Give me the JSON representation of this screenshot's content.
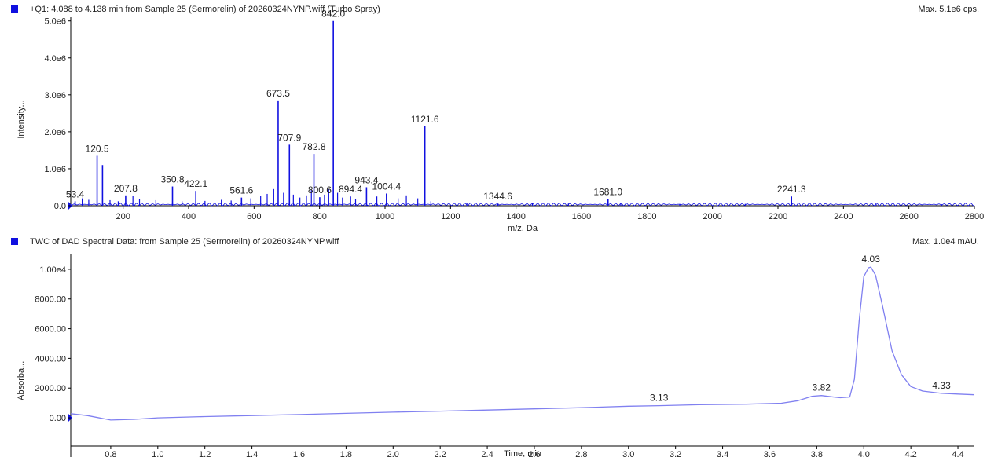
{
  "colors": {
    "accent": "#1010e0",
    "trace": "#8080f0",
    "axis": "#000000"
  },
  "spectrum": {
    "title": "+Q1: 4.088 to 4.138 min from Sample 25 (Sermorelin) of 20260324NYNP.wiff (Turbo Spray)",
    "max_label": "Max. 5.1e6 cps."
  },
  "chromatogram": {
    "title": "TWC of DAD Spectral Data: from Sample 25 (Sermorelin) of 20260324NYNP.wiff",
    "max_label": "Max. 1.0e4 mAU."
  },
  "chart_data": [
    {
      "type": "bar",
      "xlabel": "m/z, Da",
      "ylabel": "Intensity...",
      "xlim": [
        40,
        2800
      ],
      "ylim": [
        0,
        5100000.0
      ],
      "xticks": [
        200,
        400,
        600,
        800,
        1000,
        1200,
        1400,
        1600,
        1800,
        2000,
        2200,
        2400,
        2600,
        2800
      ],
      "yticks": [
        {
          "value": 0,
          "label": "0.0"
        },
        {
          "value": 1000000,
          "label": "1.0e6"
        },
        {
          "value": 2000000,
          "label": "2.0e6"
        },
        {
          "value": 3000000,
          "label": "3.0e6"
        },
        {
          "value": 4000000,
          "label": "4.0e6"
        },
        {
          "value": 5000000,
          "label": "5.0e6"
        }
      ],
      "peaks": [
        {
          "mz": 53.4,
          "intensity": 120000,
          "label": "53.4"
        },
        {
          "mz": 120.5,
          "intensity": 1350000,
          "label": "120.5"
        },
        {
          "mz": 137.0,
          "intensity": 1100000
        },
        {
          "mz": 207.8,
          "intensity": 280000,
          "label": "207.8"
        },
        {
          "mz": 350.8,
          "intensity": 520000,
          "label": "350.8"
        },
        {
          "mz": 422.1,
          "intensity": 400000,
          "label": "422.1"
        },
        {
          "mz": 561.6,
          "intensity": 220000,
          "label": "561.6"
        },
        {
          "mz": 673.5,
          "intensity": 2850000,
          "label": "673.5"
        },
        {
          "mz": 707.9,
          "intensity": 1650000,
          "label": "707.9"
        },
        {
          "mz": 782.8,
          "intensity": 1400000,
          "label": "782.8"
        },
        {
          "mz": 800.6,
          "intensity": 230000,
          "label": "800.6"
        },
        {
          "mz": 842.0,
          "intensity": 5000000,
          "label": "842.0"
        },
        {
          "mz": 894.4,
          "intensity": 250000,
          "label": "894.4"
        },
        {
          "mz": 943.4,
          "intensity": 500000,
          "label": "943.4"
        },
        {
          "mz": 1004.4,
          "intensity": 330000,
          "label": "1004.4"
        },
        {
          "mz": 1121.6,
          "intensity": 2150000,
          "label": "1121.6"
        },
        {
          "mz": 1344.6,
          "intensity": 60000,
          "label": "1344.6"
        },
        {
          "mz": 1681.0,
          "intensity": 180000,
          "label": "1681.0"
        },
        {
          "mz": 2241.3,
          "intensity": 250000,
          "label": "2241.3"
        }
      ],
      "minor_peaks": [
        {
          "mz": 75,
          "intensity": 200000
        },
        {
          "mz": 95,
          "intensity": 160000
        },
        {
          "mz": 160,
          "intensity": 150000
        },
        {
          "mz": 185,
          "intensity": 120000
        },
        {
          "mz": 230,
          "intensity": 260000
        },
        {
          "mz": 250,
          "intensity": 180000
        },
        {
          "mz": 300,
          "intensity": 150000
        },
        {
          "mz": 380,
          "intensity": 120000
        },
        {
          "mz": 450,
          "intensity": 130000
        },
        {
          "mz": 500,
          "intensity": 160000
        },
        {
          "mz": 530,
          "intensity": 140000
        },
        {
          "mz": 590,
          "intensity": 200000
        },
        {
          "mz": 620,
          "intensity": 260000
        },
        {
          "mz": 640,
          "intensity": 320000
        },
        {
          "mz": 660,
          "intensity": 450000
        },
        {
          "mz": 690,
          "intensity": 350000
        },
        {
          "mz": 720,
          "intensity": 300000
        },
        {
          "mz": 740,
          "intensity": 220000
        },
        {
          "mz": 760,
          "intensity": 280000
        },
        {
          "mz": 775,
          "intensity": 420000
        },
        {
          "mz": 815,
          "intensity": 300000
        },
        {
          "mz": 828,
          "intensity": 450000
        },
        {
          "mz": 855,
          "intensity": 350000
        },
        {
          "mz": 870,
          "intensity": 220000
        },
        {
          "mz": 910,
          "intensity": 180000
        },
        {
          "mz": 975,
          "intensity": 250000
        },
        {
          "mz": 1040,
          "intensity": 200000
        },
        {
          "mz": 1065,
          "intensity": 280000
        },
        {
          "mz": 1100,
          "intensity": 200000
        },
        {
          "mz": 1140,
          "intensity": 120000
        },
        {
          "mz": 1250,
          "intensity": 80000
        },
        {
          "mz": 1450,
          "intensity": 60000
        },
        {
          "mz": 1560,
          "intensity": 60000
        },
        {
          "mz": 1720,
          "intensity": 60000
        },
        {
          "mz": 1900,
          "intensity": 50000
        },
        {
          "mz": 2100,
          "intensity": 50000
        },
        {
          "mz": 2500,
          "intensity": 40000
        },
        {
          "mz": 2700,
          "intensity": 40000
        }
      ]
    },
    {
      "type": "line",
      "xlabel": "Time, min",
      "ylabel": "Absorba...",
      "xlim": [
        0.63,
        4.47
      ],
      "ylim": [
        -1900,
        11000
      ],
      "xticks": [
        {
          "value": 0.8,
          "label": "0.8"
        },
        {
          "value": 1.0,
          "label": "1.0"
        },
        {
          "value": 1.2,
          "label": "1.2"
        },
        {
          "value": 1.4,
          "label": "1.4"
        },
        {
          "value": 1.6,
          "label": "1.6"
        },
        {
          "value": 1.8,
          "label": "1.8"
        },
        {
          "value": 2.0,
          "label": "2.0"
        },
        {
          "value": 2.2,
          "label": "2.2"
        },
        {
          "value": 2.4,
          "label": "2.4"
        },
        {
          "value": 2.6,
          "label": "2.6"
        },
        {
          "value": 2.8,
          "label": "2.8"
        },
        {
          "value": 3.0,
          "label": "3.0"
        },
        {
          "value": 3.2,
          "label": "3.2"
        },
        {
          "value": 3.4,
          "label": "3.4"
        },
        {
          "value": 3.6,
          "label": "3.6"
        },
        {
          "value": 3.8,
          "label": "3.8"
        },
        {
          "value": 4.0,
          "label": "4.0"
        },
        {
          "value": 4.2,
          "label": "4.2"
        },
        {
          "value": 4.4,
          "label": "4.4"
        }
      ],
      "yticks": [
        {
          "value": 0,
          "label": "0.00"
        },
        {
          "value": 2000,
          "label": "2000.00"
        },
        {
          "value": 4000,
          "label": "4000.00"
        },
        {
          "value": 6000,
          "label": "6000.00"
        },
        {
          "value": 8000,
          "label": "8000.00"
        },
        {
          "value": 10000,
          "label": "1.00e4"
        }
      ],
      "x": [
        0.63,
        0.7,
        0.8,
        0.9,
        1.0,
        1.2,
        1.4,
        1.6,
        1.8,
        2.0,
        2.2,
        2.4,
        2.6,
        2.8,
        3.0,
        3.13,
        3.3,
        3.5,
        3.65,
        3.72,
        3.78,
        3.82,
        3.86,
        3.9,
        3.94,
        3.96,
        3.98,
        4.0,
        4.02,
        4.03,
        4.05,
        4.08,
        4.12,
        4.16,
        4.2,
        4.25,
        4.33,
        4.4,
        4.47
      ],
      "y": [
        280,
        150,
        -150,
        -100,
        0,
        80,
        150,
        220,
        300,
        380,
        450,
        520,
        600,
        680,
        780,
        820,
        880,
        920,
        980,
        1150,
        1450,
        1500,
        1420,
        1350,
        1400,
        2600,
        6500,
        9500,
        10100,
        10150,
        9600,
        7500,
        4500,
        2900,
        2100,
        1800,
        1650,
        1600,
        1550
      ],
      "annotations": [
        {
          "x": 3.13,
          "y": 820,
          "label": "3.13"
        },
        {
          "x": 3.82,
          "y": 1500,
          "label": "3.82"
        },
        {
          "x": 4.03,
          "y": 10150,
          "label": "4.03"
        },
        {
          "x": 4.33,
          "y": 1650,
          "label": "4.33"
        }
      ]
    }
  ]
}
